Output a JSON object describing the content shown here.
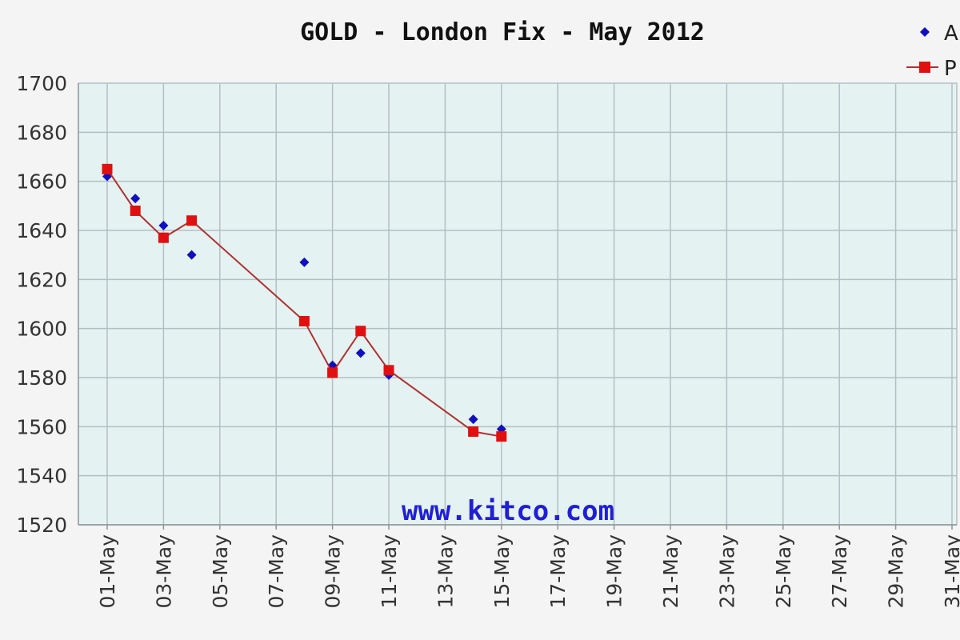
{
  "chart_data": {
    "type": "line",
    "title": "GOLD - London Fix - May 2012",
    "watermark": "www.kitco.com",
    "xlabel": "",
    "ylabel": "",
    "ylim": [
      1520,
      1700
    ],
    "yticks": [
      1520,
      1540,
      1560,
      1580,
      1600,
      1620,
      1640,
      1660,
      1680,
      1700
    ],
    "x_categories": [
      "01-May",
      "03-May",
      "05-May",
      "07-May",
      "09-May",
      "11-May",
      "13-May",
      "15-May",
      "17-May",
      "19-May",
      "21-May",
      "23-May",
      "25-May",
      "27-May",
      "29-May",
      "31-May"
    ],
    "grid": true,
    "legend_position": "top-right",
    "series": [
      {
        "name": "A",
        "marker": "diamond",
        "line": false,
        "color": "#1010c0",
        "points": [
          {
            "x": 1,
            "y": 1662
          },
          {
            "x": 2,
            "y": 1653
          },
          {
            "x": 3,
            "y": 1642
          },
          {
            "x": 4,
            "y": 1630
          },
          {
            "x": 8,
            "y": 1627
          },
          {
            "x": 9,
            "y": 1585
          },
          {
            "x": 10,
            "y": 1590
          },
          {
            "x": 11,
            "y": 1581
          },
          {
            "x": 14,
            "y": 1563
          },
          {
            "x": 15,
            "y": 1559
          }
        ]
      },
      {
        "name": "P",
        "marker": "square",
        "line": true,
        "color": "#e01010",
        "line_color": "#b03030",
        "points": [
          {
            "x": 1,
            "y": 1665
          },
          {
            "x": 2,
            "y": 1648
          },
          {
            "x": 3,
            "y": 1637
          },
          {
            "x": 4,
            "y": 1644
          },
          {
            "x": 8,
            "y": 1603
          },
          {
            "x": 9,
            "y": 1582
          },
          {
            "x": 10,
            "y": 1599
          },
          {
            "x": 11,
            "y": 1583
          },
          {
            "x": 14,
            "y": 1558
          },
          {
            "x": 15,
            "y": 1556
          }
        ]
      }
    ]
  },
  "colors": {
    "plot_background": "#e5f2f2",
    "grid": "#b3c0c3",
    "frame_background": "#f4f4f4"
  }
}
